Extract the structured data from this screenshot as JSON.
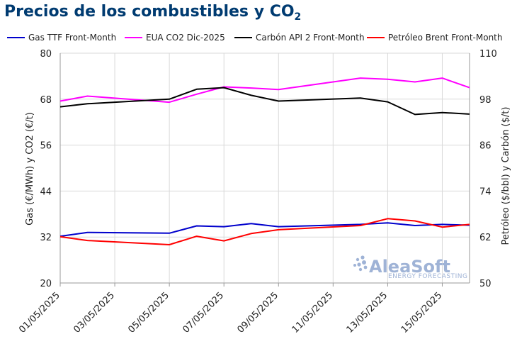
{
  "title": {
    "main": "Precios de los combustibles y CO",
    "sub": "2"
  },
  "watermark": {
    "brand": "AleaSoft",
    "tagline": "ENERGY FORECASTING"
  },
  "chart_data": {
    "type": "line",
    "x": [
      "01/05/2025",
      "02/05/2025",
      "05/05/2025",
      "06/05/2025",
      "07/05/2025",
      "08/05/2025",
      "09/05/2025",
      "12/05/2025",
      "13/05/2025",
      "14/05/2025",
      "15/05/2025",
      "16/05/2025"
    ],
    "x_tick_labels": [
      "01/05/2025",
      "03/05/2025",
      "05/05/2025",
      "07/05/2025",
      "09/05/2025",
      "11/05/2025",
      "13/05/2025",
      "15/05/2025"
    ],
    "left_axis": {
      "label": "Gas (€/MWh) y CO2 (€/t)",
      "ylim": [
        20,
        80
      ],
      "ticks": [
        20,
        32,
        44,
        56,
        68,
        80
      ]
    },
    "right_axis": {
      "label": "Petróleo ($/bbl) y Carbón ($/t)",
      "ylim": [
        50,
        110
      ],
      "ticks": [
        50,
        62,
        74,
        86,
        98,
        110
      ]
    },
    "series": [
      {
        "name": "Gas TTF Front-Month",
        "color": "#0000cc",
        "axis": "left",
        "x": [
          "01/05/2025",
          "02/05/2025",
          "05/05/2025",
          "06/05/2025",
          "07/05/2025",
          "08/05/2025",
          "09/05/2025",
          "12/05/2025",
          "13/05/2025",
          "14/05/2025",
          "15/05/2025",
          "16/05/2025"
        ],
        "values": [
          32.2,
          33.2,
          33.0,
          34.9,
          34.7,
          35.5,
          34.7,
          35.3,
          35.7,
          35.0,
          35.3,
          35.1
        ]
      },
      {
        "name": "EUA CO2 Dic-2025",
        "color": "#ff00ff",
        "axis": "left",
        "x": [
          "01/05/2025",
          "02/05/2025",
          "05/05/2025",
          "06/05/2025",
          "07/05/2025",
          "08/05/2025",
          "09/05/2025",
          "12/05/2025",
          "13/05/2025",
          "14/05/2025",
          "15/05/2025",
          "16/05/2025"
        ],
        "values": [
          67.5,
          68.8,
          67.2,
          69.3,
          71.2,
          70.9,
          70.5,
          73.5,
          73.2,
          72.5,
          73.5,
          71.0
        ]
      },
      {
        "name": "Carbón API 2 Front-Month",
        "color": "#000000",
        "axis": "right",
        "x": [
          "01/05/2025",
          "02/05/2025",
          "05/05/2025",
          "06/05/2025",
          "07/05/2025",
          "08/05/2025",
          "09/05/2025",
          "12/05/2025",
          "13/05/2025",
          "14/05/2025",
          "15/05/2025",
          "16/05/2025"
        ],
        "values": [
          96.0,
          96.8,
          98.0,
          100.6,
          101.0,
          99.0,
          97.5,
          98.3,
          97.3,
          94.0,
          94.5,
          94.1
        ]
      },
      {
        "name": "Petróleo Brent Front-Month",
        "color": "#ff0000",
        "axis": "right",
        "x": [
          "01/05/2025",
          "02/05/2025",
          "05/05/2025",
          "06/05/2025",
          "07/05/2025",
          "08/05/2025",
          "09/05/2025",
          "12/05/2025",
          "13/05/2025",
          "14/05/2025",
          "15/05/2025",
          "16/05/2025"
        ],
        "values": [
          62.1,
          61.1,
          60.0,
          62.2,
          61.0,
          62.9,
          63.9,
          65.0,
          66.8,
          66.2,
          64.6,
          65.3
        ]
      }
    ],
    "grid": true,
    "legend_position": "top"
  }
}
